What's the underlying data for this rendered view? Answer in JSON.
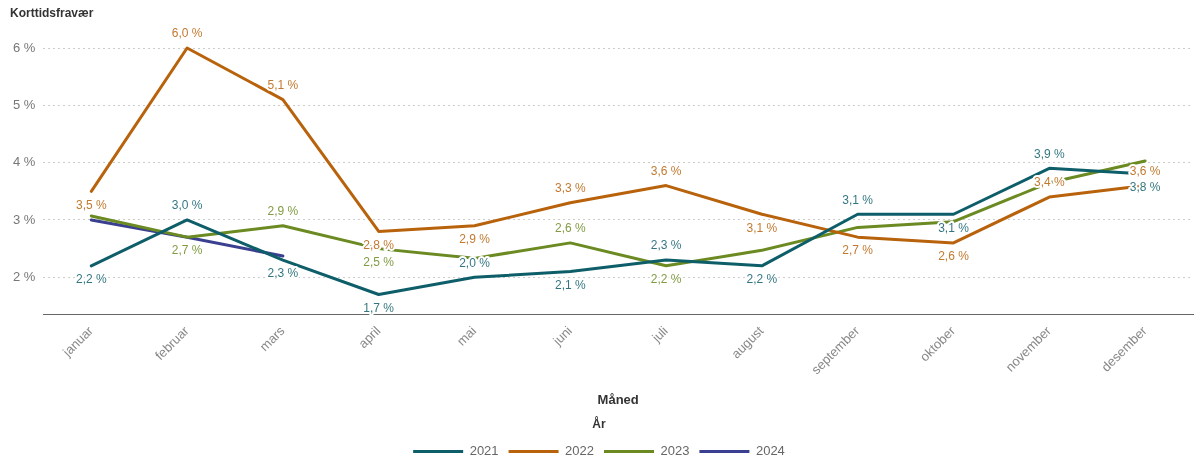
{
  "chart_data": {
    "type": "line",
    "ylabel": "Korttidsfravær",
    "xlabel": "Måned",
    "legend_title": "År",
    "legend": "bottom",
    "grid": "y",
    "marker": "none",
    "line_style": "solid",
    "categories": [
      "januar",
      "februar",
      "mars",
      "april",
      "mai",
      "juni",
      "juli",
      "august",
      "september",
      "oktober",
      "november",
      "desember"
    ],
    "ylim": [
      1.35,
      6
    ],
    "yticks": [
      {
        "value": 2,
        "label": "2 %"
      },
      {
        "value": 3,
        "label": "3 %"
      },
      {
        "value": 4,
        "label": "4 %"
      },
      {
        "value": 5,
        "label": "5 %"
      },
      {
        "value": 6,
        "label": "6 %"
      }
    ],
    "series": [
      {
        "name": "2021",
        "color": "#0e5e6a",
        "values": [
          2.2,
          3.0,
          2.3,
          1.7,
          2.0,
          2.1,
          2.3,
          2.2,
          3.1,
          3.1,
          3.9,
          3.8
        ],
        "value_labels": [
          "2,2 %",
          "3,0 %",
          "2,3 %",
          "1,7 %",
          "2,0 %",
          "2,1 %",
          "2,3 %",
          "2,2 %",
          "3,1 %",
          "3,1 %",
          "3,9 %",
          "3,8 %"
        ]
      },
      {
        "name": "2022",
        "color": "#b8620c",
        "values": [
          3.5,
          6.0,
          5.1,
          2.8,
          2.9,
          3.3,
          3.6,
          3.1,
          2.7,
          2.6,
          3.4,
          3.6
        ],
        "value_labels": [
          "3,5 %",
          "6,0 %",
          "5,1 %",
          "2,8 %",
          "2,9 %",
          "3,3 %",
          "3,6 %",
          "3,1 %",
          "2,7 %",
          "2,6 %",
          "3,4 %",
          "3,6 %"
        ]
      },
      {
        "name": "2023",
        "color": "#6b8a22",
        "values": [
          3.07,
          2.7,
          2.9,
          2.5,
          2.33,
          2.6,
          2.2,
          2.47,
          2.87,
          2.97,
          3.65,
          4.03
        ],
        "value_labels": [
          null,
          "2,7 %",
          "2,9 %",
          "2,5 %",
          null,
          "2,6 %",
          "2,2 %",
          null,
          null,
          null,
          null,
          null
        ]
      },
      {
        "name": "2024",
        "color": "#3a3f8f",
        "values": [
          3.0,
          2.7,
          2.37,
          null,
          null,
          null,
          null,
          null,
          null,
          null,
          null,
          null
        ]
      }
    ]
  }
}
